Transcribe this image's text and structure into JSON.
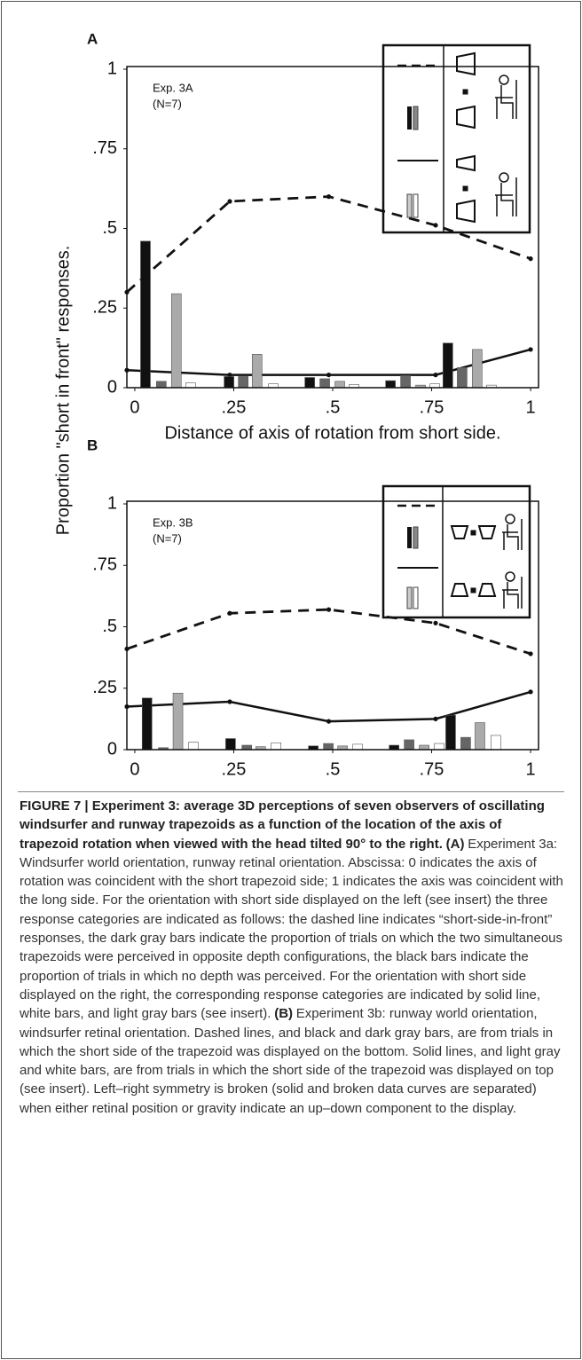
{
  "ylabel": "Proportion \"short in front\" responses.",
  "chart_data": [
    {
      "type": "combo",
      "panel": "A",
      "annotations": [
        "Exp. 3A",
        "(N=7)"
      ],
      "xlabel": "Distance of axis of rotation from short side.",
      "xlim": [
        -0.02,
        1.02
      ],
      "ylim": [
        0,
        1
      ],
      "xticks": [
        {
          "value": 0,
          "label": "0"
        },
        {
          "value": 0.25,
          "label": ".25"
        },
        {
          "value": 0.5,
          "label": ".5"
        },
        {
          "value": 0.75,
          "label": ".75"
        },
        {
          "value": 1,
          "label": "1"
        }
      ],
      "yticks": [
        {
          "value": 0,
          "label": "0"
        },
        {
          "value": 0.25,
          "label": ".25"
        },
        {
          "value": 0.5,
          "label": ".5"
        },
        {
          "value": 0.75,
          "label": ".75"
        },
        {
          "value": 1,
          "label": "1"
        }
      ],
      "series": [
        {
          "style": "dashed",
          "color": "#111111",
          "x": [
            -0.02,
            0.24,
            0.49,
            0.76,
            1.0
          ],
          "values": [
            0.3,
            0.585,
            0.6,
            0.51,
            0.405
          ]
        },
        {
          "style": "solid",
          "color": "#111111",
          "x": [
            -0.02,
            0.24,
            0.49,
            0.76,
            1.0
          ],
          "values": [
            0.055,
            0.04,
            0.04,
            0.04,
            0.12
          ]
        }
      ],
      "bars": [
        {
          "color": "#111111",
          "x": [
            0.027,
            0.238,
            0.442,
            0.646,
            0.791
          ],
          "values": [
            0.46,
            0.035,
            0.032,
            0.022,
            0.14
          ]
        },
        {
          "color": "#666666",
          "x": [
            0.067,
            0.274,
            0.48,
            0.684,
            0.827
          ],
          "values": [
            0.02,
            0.035,
            0.028,
            0.038,
            0.063
          ]
        },
        {
          "color": "#aaaaaa",
          "x": [
            0.105,
            0.309,
            0.518,
            0.722,
            0.865
          ],
          "values": [
            0.295,
            0.105,
            0.02,
            0.008,
            0.12
          ]
        },
        {
          "color": "#ffffff",
          "x": [
            0.141,
            0.35,
            0.554,
            0.758,
            0.901
          ],
          "values": [
            0.015,
            0.012,
            0.01,
            0.012,
            0.008
          ]
        }
      ]
    },
    {
      "type": "combo",
      "panel": "B",
      "annotations": [
        "Exp. 3B",
        "(N=7)"
      ],
      "xlim": [
        -0.02,
        1.02
      ],
      "ylim": [
        0,
        1
      ],
      "xticks": [
        {
          "value": 0,
          "label": "0"
        },
        {
          "value": 0.25,
          "label": ".25"
        },
        {
          "value": 0.5,
          "label": ".5"
        },
        {
          "value": 0.75,
          "label": ".75"
        },
        {
          "value": 1,
          "label": "1"
        }
      ],
      "yticks": [
        {
          "value": 0,
          "label": "0"
        },
        {
          "value": 0.25,
          "label": ".25"
        },
        {
          "value": 0.5,
          "label": ".5"
        },
        {
          "value": 0.75,
          "label": ".75"
        },
        {
          "value": 1,
          "label": "1"
        }
      ],
      "series": [
        {
          "style": "dashed",
          "color": "#111111",
          "x": [
            -0.02,
            0.24,
            0.49,
            0.76,
            1.0
          ],
          "values": [
            0.41,
            0.555,
            0.57,
            0.515,
            0.39
          ]
        },
        {
          "style": "solid",
          "color": "#111111",
          "x": [
            -0.02,
            0.24,
            0.49,
            0.76,
            1.0
          ],
          "values": [
            0.175,
            0.195,
            0.115,
            0.125,
            0.235
          ]
        }
      ],
      "bars": [
        {
          "color": "#111111",
          "x": [
            0.031,
            0.242,
            0.451,
            0.655,
            0.798
          ],
          "values": [
            0.21,
            0.045,
            0.015,
            0.018,
            0.14
          ]
        },
        {
          "color": "#666666",
          "x": [
            0.072,
            0.283,
            0.489,
            0.693,
            0.836
          ],
          "values": [
            0.008,
            0.018,
            0.025,
            0.04,
            0.05
          ]
        },
        {
          "color": "#aaaaaa",
          "x": [
            0.109,
            0.318,
            0.525,
            0.731,
            0.872
          ],
          "values": [
            0.23,
            0.012,
            0.015,
            0.018,
            0.11
          ]
        },
        {
          "color": "#ffffff",
          "x": [
            0.148,
            0.357,
            0.563,
            0.769,
            0.912
          ],
          "values": [
            0.03,
            0.028,
            0.022,
            0.025,
            0.058
          ]
        }
      ]
    }
  ],
  "caption": [
    {
      "bold": true,
      "text": "FIGURE 7 | Experiment 3: average 3D perceptions of seven observers of oscillating windsurfer and runway trapezoids as a function of the location of the axis of trapezoid rotation when viewed with the head tilted 90° to the right."
    },
    {
      "bold": true,
      "text": "(A)"
    },
    {
      "bold": false,
      "text": "Experiment 3a: Windsurfer world orientation, runway retinal orientation. Abscissa: 0 indicates the axis of rotation was coincident with the short trapezoid side; 1 indicates the axis was coincident with the long side. For the orientation with short side displayed on the left (see insert) the three response categories are indicated as follows: the dashed line indicates “short-side-in-front” responses, the dark gray bars indicate the proportion of trials on which the two simultaneous trapezoids were perceived in opposite depth configurations, the black bars indicate the proportion of trials in which no depth was perceived. For the orientation with short side displayed on the right, the corresponding response categories are indicated by solid line, white bars, and light gray bars (see insert)."
    },
    {
      "bold": true,
      "text": "(B)"
    },
    {
      "bold": false,
      "text": "Experiment 3b: runway world orientation, windsurfer retinal orientation. Dashed lines, and black and dark gray bars, are from trials in which the short side of the trapezoid was displayed on the bottom. Solid lines, and light gray and white bars, are from trials in which the short side of the trapezoid was displayed on top (see insert). Left–right symmetry is broken (solid and broken data curves are separated) when either retinal position or gravity indicate an up–down component to the display."
    }
  ]
}
